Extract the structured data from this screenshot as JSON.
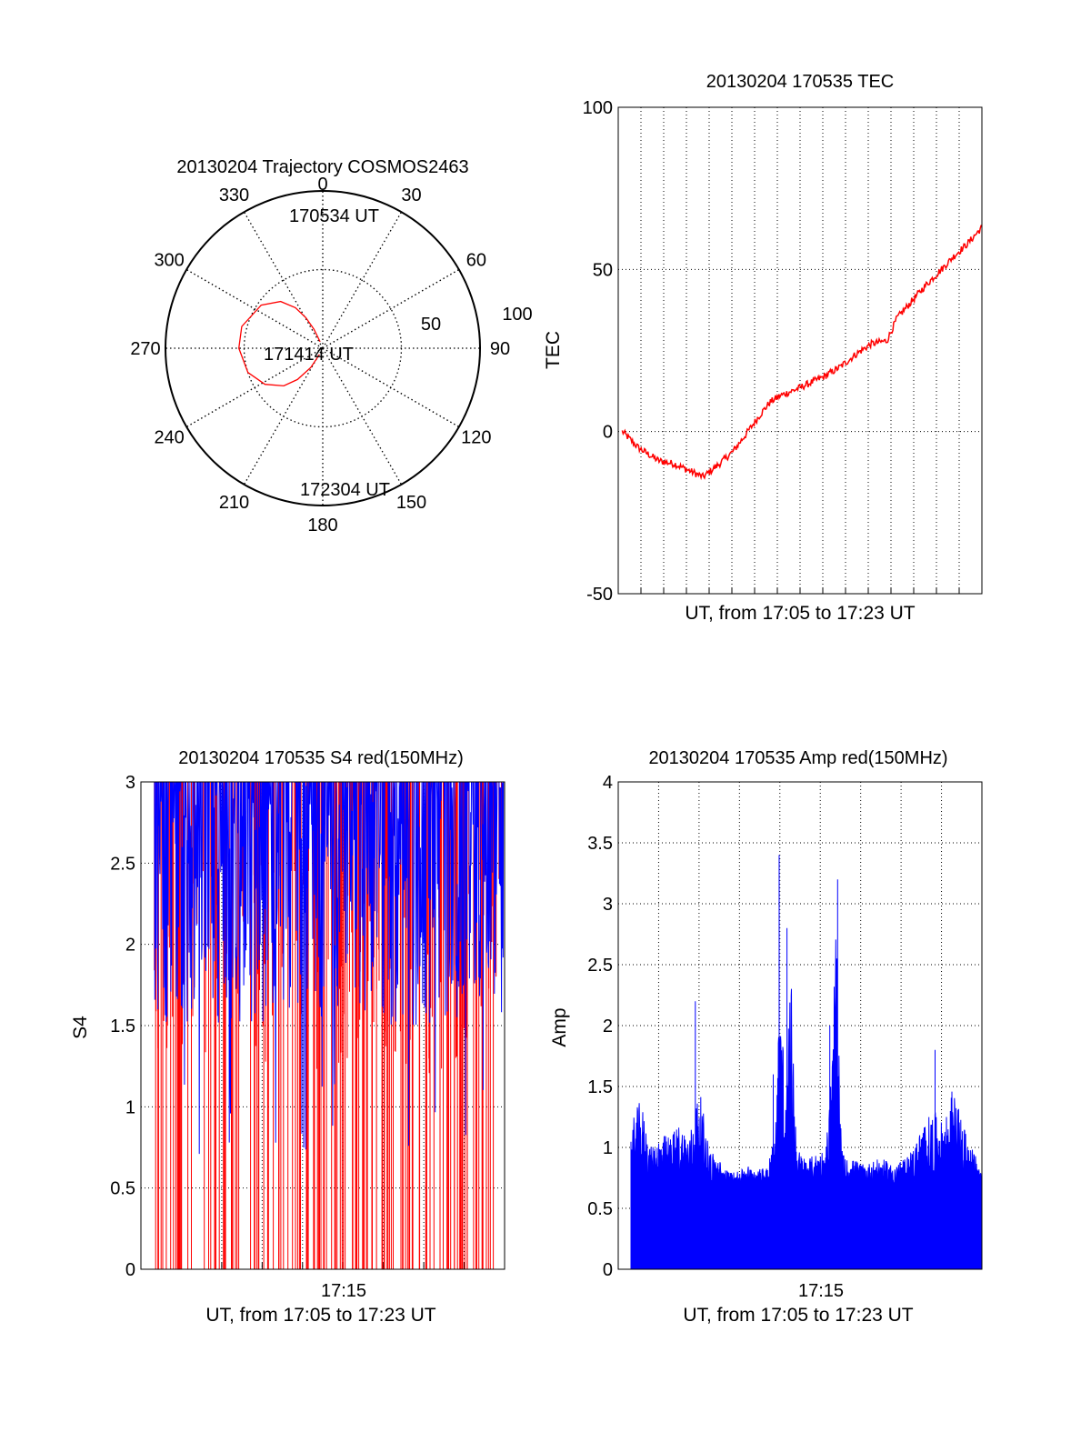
{
  "colors": {
    "red": "#ff0000",
    "blue": "#0000ff",
    "axis": "#000000",
    "grid": "#000000"
  },
  "chart_data": [
    {
      "type": "polar",
      "title": "20130204 Trajectory COSMOS2463",
      "angle_labels": [
        "0",
        "30",
        "60",
        "90",
        "120",
        "150",
        "180",
        "210",
        "240",
        "270",
        "300",
        "330"
      ],
      "radial_ticks": [
        "50",
        "100"
      ],
      "series": [
        {
          "color": "red",
          "points": [
            [
              338,
              86
            ],
            [
              335,
              78
            ],
            [
              331,
              70
            ],
            [
              326,
              62
            ],
            [
              318,
              54
            ],
            [
              305,
              47
            ],
            [
              285,
              42
            ],
            [
              270,
              42
            ],
            [
              252,
              45
            ],
            [
              238,
              51
            ],
            [
              226,
              59
            ],
            [
              219,
              67
            ],
            [
              212,
              77
            ],
            [
              208,
              86
            ]
          ]
        }
      ],
      "annotations": [
        "170534 UT",
        "171414 UT",
        "172304 UT"
      ]
    },
    {
      "type": "line",
      "title": "20130204 170535 TEC",
      "xlabel": "UT, from 17:05 to 17:23 UT",
      "ylabel": "TEC",
      "xlim": [
        0,
        18
      ],
      "ylim": [
        -50,
        100
      ],
      "yticks": [
        "-50",
        "0",
        "50",
        "100"
      ],
      "grid": true,
      "series": [
        {
          "color": "red",
          "x": [
            0.2,
            1,
            1.5,
            2,
            2.8,
            3.5,
            4.2,
            5,
            5.7,
            6.3,
            7,
            7.5,
            8,
            8.8,
            9.5,
            10.2,
            11,
            11.8,
            12.5,
            13.3,
            13.8,
            14.5,
            15.2,
            16,
            16.6,
            17.3,
            18
          ],
          "y": [
            0,
            -5,
            -7,
            -9,
            -10,
            -12,
            -14,
            -10,
            -6,
            -1,
            5,
            9,
            11,
            13,
            15,
            17,
            20,
            24,
            27,
            28,
            35,
            40,
            45,
            50,
            54,
            58,
            63
          ]
        }
      ]
    },
    {
      "type": "line",
      "title": "20130204 170535 S4 red(150MHz)",
      "xlabel": "UT, from 17:05 to 17:23 UT",
      "ylabel": "S4",
      "xtick": "17:15",
      "xlim": [
        0,
        18
      ],
      "ylim": [
        0,
        3
      ],
      "yticks": [
        "0",
        "0.5",
        "1",
        "1.5",
        "2",
        "2.5",
        "3"
      ],
      "grid": true,
      "series": [
        {
          "color": "blue",
          "style": "dense noisy line between about 1.5 and 3"
        },
        {
          "color": "red",
          "style": "vertical spikes from 0 to 3"
        }
      ]
    },
    {
      "type": "area",
      "title": "20130204 170535 Amp red(150MHz)",
      "xlabel": "UT, from 17:05 to 17:23 UT",
      "ylabel": "Amp",
      "xtick": "17:15",
      "xlim": [
        0,
        18
      ],
      "ylim": [
        0,
        4
      ],
      "yticks": [
        "0",
        "0.5",
        "1",
        "1.5",
        "2",
        "2.5",
        "3",
        "3.5",
        "4"
      ],
      "grid": true,
      "series": [
        {
          "color": "blue",
          "x": [
            0,
            0.5,
            1,
            1.5,
            2,
            2.5,
            3,
            3.5,
            4,
            4.5,
            5,
            5.5,
            6,
            6.5,
            7,
            7.4,
            7.7,
            7.9,
            8.2,
            8.5,
            9,
            9.5,
            10,
            10.3,
            10.5,
            10.8,
            11,
            11.5,
            12,
            12.5,
            13,
            13.5,
            14,
            14.5,
            15,
            15.5,
            16,
            16.5,
            17,
            17.5,
            18
          ],
          "y": [
            1.2,
            1.4,
            1.0,
            1.1,
            1.1,
            1.2,
            1.1,
            1.5,
            1.0,
            0.9,
            0.8,
            0.8,
            0.85,
            0.8,
            0.9,
            1.1,
            2.8,
            1.2,
            2.5,
            1.0,
            0.9,
            0.95,
            1.0,
            1.7,
            2.9,
            1.0,
            0.9,
            0.9,
            0.85,
            0.9,
            0.9,
            0.85,
            0.9,
            1.0,
            1.2,
            1.3,
            1.2,
            1.5,
            1.2,
            1.0,
            0.8
          ],
          "peaks": [
            [
              7.3,
              1.6
            ],
            [
              7.6,
              3.4
            ],
            [
              8.0,
              2.8
            ],
            [
              10.2,
              2.0
            ],
            [
              10.6,
              3.2
            ],
            [
              15.6,
              1.8
            ],
            [
              3.3,
              2.2
            ]
          ]
        }
      ]
    }
  ]
}
